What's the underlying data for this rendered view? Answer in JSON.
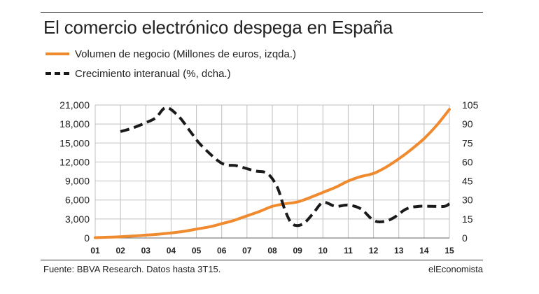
{
  "header": {
    "title": "El comercio electrónico despega en España"
  },
  "footer": {
    "source": "Fuente: BBVA Research. Datos hasta 3T15.",
    "brand": "elEconomista"
  },
  "colors": {
    "volume_line": "#f08a2e",
    "growth_line": "#1a1a1a",
    "grid": "#bfbfbf"
  },
  "chart_data": {
    "type": "line",
    "title": "El comercio electrónico despega en España",
    "x_ticks": [
      "01",
      "02",
      "03",
      "04",
      "05",
      "06",
      "07",
      "08",
      "09",
      "10",
      "11",
      "12",
      "13",
      "14",
      "15"
    ],
    "x_range": [
      2001,
      2015
    ],
    "y_left": {
      "label": "Millones de euros",
      "range": [
        0,
        21000
      ],
      "ticks": [
        "0",
        "3,000",
        "6,000",
        "9,000",
        "12,000",
        "15,000",
        "18,000",
        "21,000"
      ],
      "tick_values": [
        0,
        3000,
        6000,
        9000,
        12000,
        15000,
        18000,
        21000
      ]
    },
    "y_right": {
      "label": "%",
      "range": [
        0,
        105
      ],
      "ticks": [
        "0",
        "15",
        "30",
        "45",
        "60",
        "75",
        "90",
        "105"
      ],
      "tick_values": [
        0,
        15,
        30,
        45,
        60,
        75,
        90,
        105
      ]
    },
    "grid": true,
    "series": [
      {
        "name": "Volumen de negocio (Millones de euros, izqda.)",
        "axis": "left",
        "style": "solid",
        "x": [
          2001,
          2001.5,
          2002,
          2002.5,
          2003,
          2003.5,
          2004,
          2004.5,
          2005,
          2005.5,
          2006,
          2006.5,
          2007,
          2007.5,
          2008,
          2008.5,
          2009,
          2009.5,
          2010,
          2010.5,
          2011,
          2011.5,
          2012,
          2012.5,
          2013,
          2013.5,
          2014,
          2014.5,
          2015
        ],
        "values": [
          50,
          120,
          200,
          320,
          450,
          600,
          800,
          1050,
          1400,
          1750,
          2250,
          2800,
          3500,
          4200,
          5000,
          5400,
          5700,
          6400,
          7200,
          8000,
          9000,
          9700,
          10200,
          11200,
          12500,
          14000,
          15700,
          17800,
          20300
        ]
      },
      {
        "name": "Crecimiento interanual (%, dcha.)",
        "axis": "right",
        "style": "dashed",
        "x": [
          2002,
          2002.5,
          2003,
          2003.4,
          2003.8,
          2004.3,
          2004.8,
          2005.2,
          2006,
          2006.6,
          2007.3,
          2007.8,
          2008.2,
          2008.5,
          2008.8,
          2009.2,
          2009.6,
          2010,
          2010.5,
          2011,
          2011.5,
          2012,
          2012.4,
          2012.8,
          2013.3,
          2013.8,
          2014.3,
          2014.8,
          2015
        ],
        "values": [
          84,
          87,
          91,
          95,
          103,
          96,
          83,
          73,
          59,
          57,
          53,
          51,
          40,
          22,
          11,
          11,
          19,
          28,
          25,
          26,
          23,
          14,
          13,
          16,
          23,
          25,
          25,
          25,
          27
        ]
      }
    ]
  }
}
